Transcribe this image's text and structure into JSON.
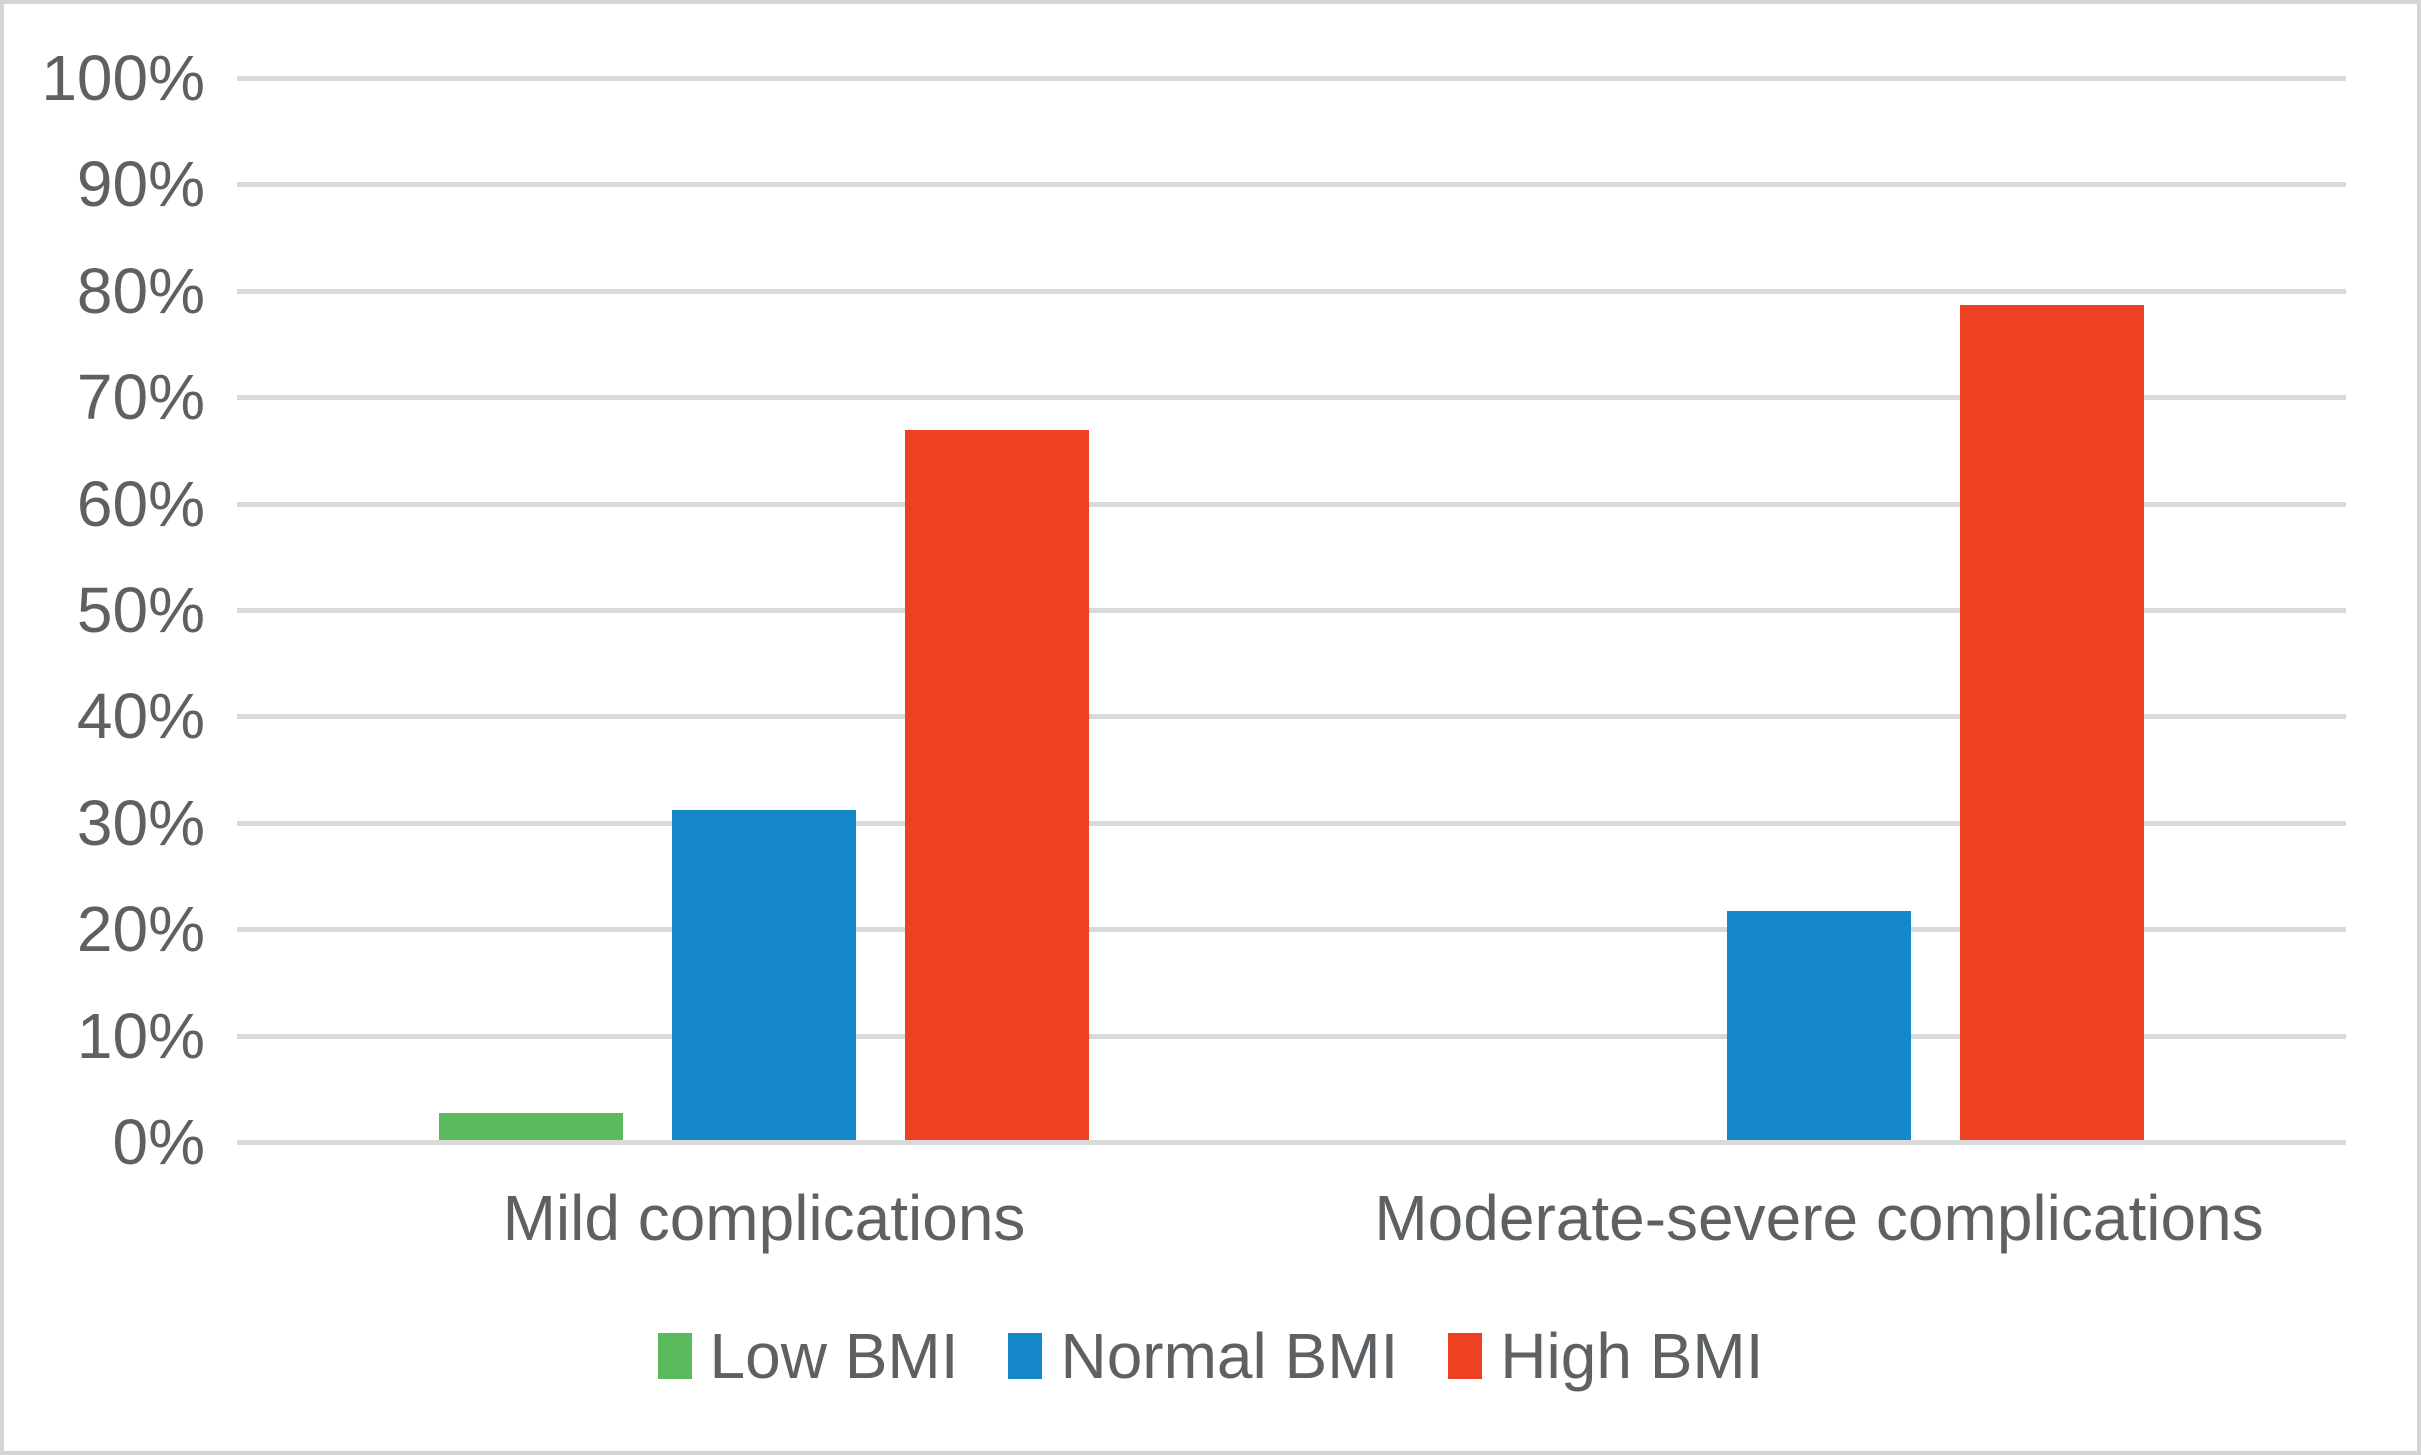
{
  "chart_data": {
    "type": "bar",
    "title": "",
    "categories": [
      "Mild complications",
      "Moderate-severe complications"
    ],
    "series": [
      {
        "name": "Low BMI",
        "color": "#5bb95e",
        "values": [
          2.5,
          0
        ]
      },
      {
        "name": "Normal BMI",
        "color": "#1588cb",
        "values": [
          31,
          21.5
        ]
      },
      {
        "name": "High BMI",
        "color": "#ee4023",
        "values": [
          66.7,
          78.5
        ]
      }
    ],
    "xlabel": "",
    "ylabel": "",
    "ylim": [
      0,
      100
    ],
    "ytick_labels": [
      "0%",
      "10%",
      "20%",
      "30%",
      "40%",
      "50%",
      "60%",
      "70%",
      "80%",
      "90%",
      "100%"
    ],
    "grid": true,
    "legend_position": "bottom"
  },
  "style": {
    "text_color": "#5e6163",
    "gridline_color": "#d9d9d9",
    "border_color": "#d2d4d5",
    "background": "#ffffff"
  }
}
